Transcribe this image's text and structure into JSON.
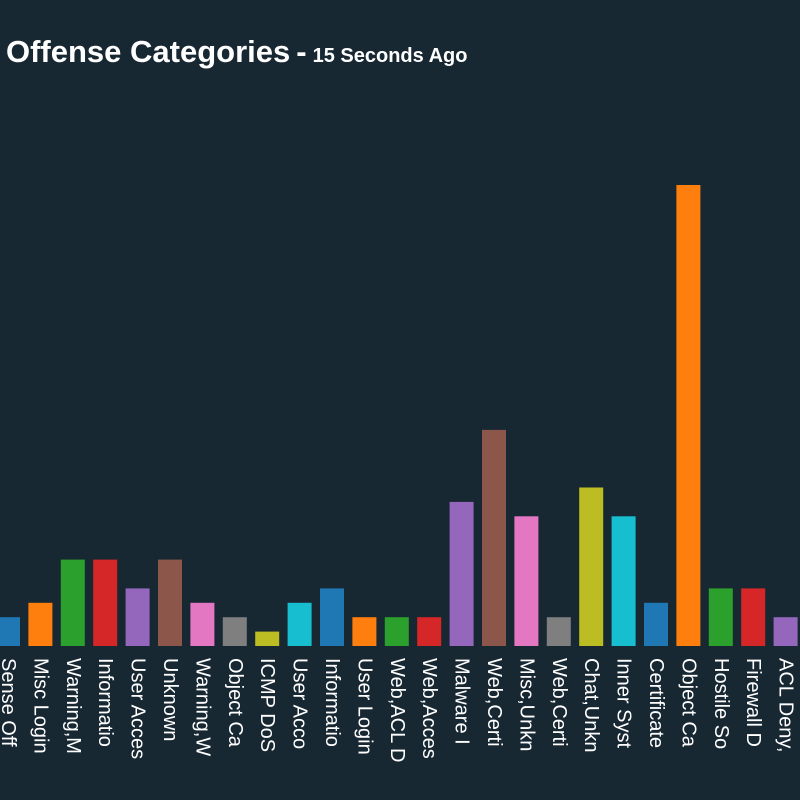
{
  "title": {
    "main": "Offense Categories",
    "separator": "-",
    "subtitle": "15 Seconds Ago"
  },
  "chart_data": {
    "type": "bar",
    "title": "Offense Categories",
    "subtitle": "15 Seconds Ago",
    "xlabel": "",
    "ylabel": "",
    "ylim": [
      0,
      32
    ],
    "grid": false,
    "categories": [
      "Sense Off",
      "Misc Login",
      "Warning,M",
      "Informatio",
      "User Acces",
      "Unknown",
      "Warning,W",
      "Object Ca",
      "ICMP DoS",
      "User Acco",
      "Informatio",
      "User Login",
      "Web,ACL D",
      "Web,Acces",
      "Malware I",
      "Web,Certi",
      "Misc,Unkn",
      "Web,Certi",
      "Chat,Unkn",
      "Inner Syst",
      "Certificate",
      "Object Ca",
      "Hostile So",
      "Firewall D",
      "ACL Deny,"
    ],
    "values": [
      2,
      3,
      6,
      6,
      4,
      6,
      3,
      2,
      1,
      3,
      4,
      2,
      2,
      2,
      10,
      15,
      9,
      2,
      11,
      9,
      3,
      32,
      4,
      4,
      2
    ],
    "colors": [
      "#1f77b4",
      "#ff7f0e",
      "#2ca02c",
      "#d62728",
      "#9467bd",
      "#8c564b",
      "#e377c2",
      "#7f7f7f",
      "#bcbd22",
      "#17becf",
      "#1f77b4",
      "#ff7f0e",
      "#2ca02c",
      "#d62728",
      "#9467bd",
      "#8c564b",
      "#e377c2",
      "#7f7f7f",
      "#bcbd22",
      "#17becf",
      "#1f77b4",
      "#ff7f0e",
      "#2ca02c",
      "#d62728",
      "#9467bd"
    ]
  }
}
